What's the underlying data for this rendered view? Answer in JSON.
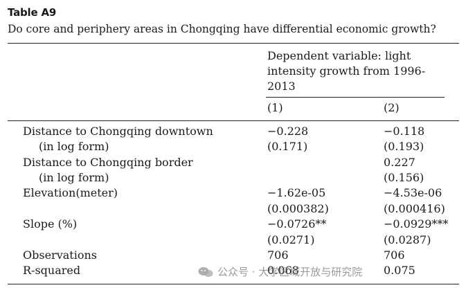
{
  "table": {
    "label": "Table A9",
    "caption": "Do core and periphery areas in Chongqing have differential economic growth?",
    "dependent_variable": "Dependent variable: light intensity growth from 1996-2013",
    "columns": [
      "(1)",
      "(2)"
    ],
    "rows": [
      {
        "label": "Distance to Chongqing downtown",
        "c1": "−0.228",
        "c2": "−0.118"
      },
      {
        "label": "(in log form)",
        "c1": "(0.171)",
        "c2": "(0.193)"
      },
      {
        "label": "Distance to Chongqing border",
        "c1": "",
        "c2": "0.227"
      },
      {
        "label": "(in log form)",
        "c1": "",
        "c2": "(0.156)"
      },
      {
        "label": "Elevation(meter)",
        "c1": "−1.62e-05",
        "c2": "−4.53e-06"
      },
      {
        "label": "",
        "c1": "(0.000382)",
        "c2": "(0.000416)"
      },
      {
        "label": "Slope (%)",
        "c1": "−0.0726**",
        "c2": "−0.0929***"
      },
      {
        "label": "",
        "c1": "(0.0271)",
        "c2": "(0.0287)"
      },
      {
        "label": "Observations",
        "c1": "706",
        "c2": "706"
      },
      {
        "label": "R-squared",
        "c1": "0.068",
        "c2": "0.075"
      }
    ]
  },
  "watermark": {
    "text": "公众号 · 大学区域开放与研究院",
    "icon": "wechat-icon"
  }
}
